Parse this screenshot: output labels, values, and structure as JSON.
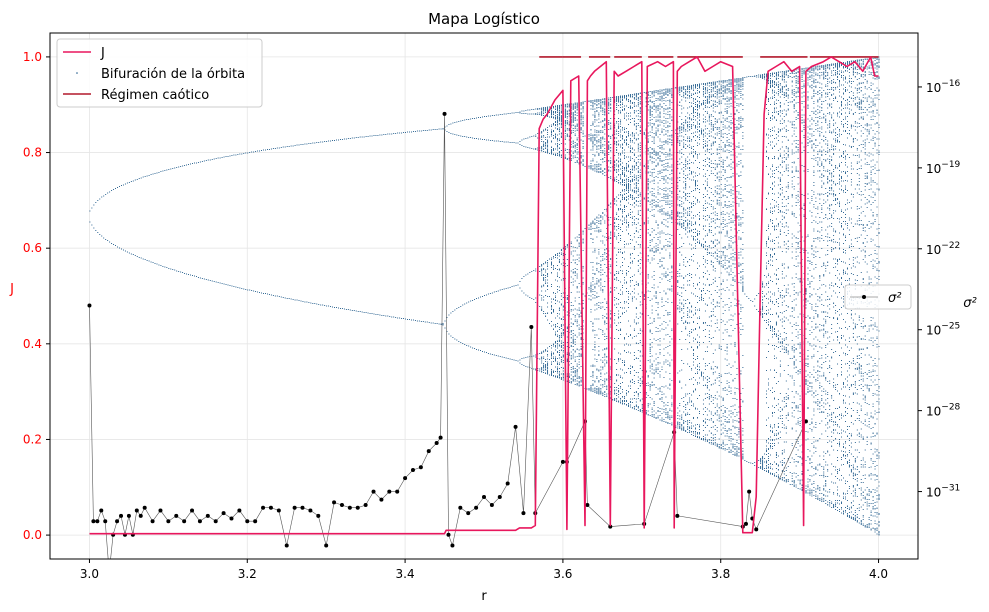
{
  "chart_data": {
    "type": "line",
    "title": "Mapa Logístico",
    "xlabel": "r",
    "ylabel_left": "J",
    "ylabel_right": "σ²",
    "xlim": [
      2.95,
      4.05
    ],
    "ylim_left": [
      -0.05,
      1.05
    ],
    "ylim_right_log10": [
      -33.5,
      -14
    ],
    "x_ticks": [
      3.0,
      3.2,
      3.4,
      3.6,
      3.8,
      4.0
    ],
    "x_tick_labels": [
      "3.0",
      "3.2",
      "3.4",
      "3.6",
      "3.8",
      "4.0"
    ],
    "y_left_ticks": [
      0.0,
      0.2,
      0.4,
      0.6,
      0.8,
      1.0
    ],
    "y_left_tick_labels": [
      "0.0",
      "0.2",
      "0.4",
      "0.6",
      "0.8",
      "1.0"
    ],
    "y_right_ticks_log10": [
      -16,
      -19,
      -22,
      -25,
      -28,
      -31
    ],
    "y_right_tick_labels": [
      "10",
      "10",
      "10",
      "10",
      "10",
      "10"
    ],
    "y_right_tick_exponents": [
      "−16",
      "−19",
      "−22",
      "−25",
      "−28",
      "−31"
    ],
    "grid": true,
    "legend_main": {
      "placement": "upper-left",
      "entries": [
        "J",
        "Bifuración de la órbita",
        "Régimen caótico"
      ]
    },
    "legend_secondary": {
      "placement": "center-right",
      "entries": [
        "σ²"
      ]
    },
    "colors": {
      "J": "#e8175d",
      "bifurcation": "#1f5a8a",
      "chaotic": "#b2182b",
      "sigma": "#000000",
      "left_axis_labels": "#ff0000"
    },
    "series": [
      {
        "name": "J",
        "axis": "left",
        "x": [
          3.0,
          3.45,
          3.452,
          3.54,
          3.545,
          3.56,
          3.565,
          3.57,
          3.575,
          3.58,
          3.59,
          3.6,
          3.605,
          3.61,
          3.62,
          3.628,
          3.631,
          3.635,
          3.64,
          3.655,
          3.66,
          3.665,
          3.67,
          3.68,
          3.69,
          3.7,
          3.703,
          3.707,
          3.72,
          3.73,
          3.74,
          3.741,
          3.745,
          3.75,
          3.76,
          3.77,
          3.78,
          3.79,
          3.8,
          3.815,
          3.828,
          3.832,
          3.84,
          3.845,
          3.85,
          3.855,
          3.86,
          3.87,
          3.88,
          3.89,
          3.9,
          3.905,
          3.908,
          3.915,
          3.93,
          3.94,
          3.95,
          3.96,
          3.97,
          3.98,
          3.99,
          3.995,
          4.0
        ],
        "values": [
          0.003,
          0.003,
          0.01,
          0.01,
          0.015,
          0.015,
          0.02,
          0.85,
          0.87,
          0.88,
          0.91,
          0.93,
          0.012,
          0.95,
          0.96,
          0.02,
          0.95,
          0.96,
          0.97,
          0.99,
          0.02,
          0.97,
          0.96,
          0.97,
          0.98,
          0.99,
          0.015,
          0.98,
          0.99,
          0.98,
          0.99,
          0.015,
          0.97,
          0.98,
          0.99,
          1.0,
          0.97,
          0.98,
          0.99,
          0.98,
          0.005,
          0.005,
          0.005,
          0.08,
          0.5,
          0.88,
          0.97,
          0.98,
          0.99,
          0.97,
          0.98,
          0.02,
          0.97,
          0.98,
          0.99,
          1.0,
          0.99,
          0.98,
          0.99,
          0.97,
          1.0,
          0.96,
          0.96
        ]
      },
      {
        "name": "Régimen caótico",
        "axis": "left",
        "level": 1.0,
        "segments": [
          [
            3.57,
            3.6
          ],
          [
            3.6,
            3.623
          ],
          [
            3.633,
            3.66
          ],
          [
            3.665,
            3.7
          ],
          [
            3.708,
            3.74
          ],
          [
            3.745,
            3.828
          ],
          [
            3.85,
            3.91
          ],
          [
            3.913,
            4.0
          ]
        ]
      },
      {
        "name": "σ²",
        "axis": "right_log10",
        "x": [
          3.0,
          3.005,
          3.01,
          3.015,
          3.02,
          3.025,
          3.03,
          3.035,
          3.04,
          3.045,
          3.05,
          3.055,
          3.06,
          3.065,
          3.07,
          3.08,
          3.09,
          3.1,
          3.11,
          3.12,
          3.13,
          3.14,
          3.15,
          3.16,
          3.17,
          3.18,
          3.19,
          3.2,
          3.21,
          3.22,
          3.23,
          3.24,
          3.25,
          3.26,
          3.27,
          3.28,
          3.29,
          3.3,
          3.31,
          3.32,
          3.33,
          3.34,
          3.35,
          3.36,
          3.37,
          3.38,
          3.39,
          3.4,
          3.41,
          3.42,
          3.43,
          3.44,
          3.445,
          3.45,
          3.455,
          3.46,
          3.47,
          3.48,
          3.49,
          3.5,
          3.51,
          3.52,
          3.53,
          3.54,
          3.55,
          3.56,
          3.565,
          3.6,
          3.605,
          3.628,
          3.631,
          3.66,
          3.703,
          3.741,
          3.745,
          3.828,
          3.832,
          3.836,
          3.84,
          3.845,
          3.908
        ],
        "values_log10": [
          -24.1,
          -32.1,
          -32.1,
          -31.7,
          -32.1,
          -34.0,
          -32.6,
          -32.1,
          -31.9,
          -32.6,
          -31.9,
          -32.6,
          -31.7,
          -31.9,
          -31.6,
          -32.1,
          -31.7,
          -32.1,
          -31.9,
          -32.1,
          -31.7,
          -32.1,
          -31.9,
          -32.1,
          -31.8,
          -32.0,
          -31.7,
          -32.1,
          -32.1,
          -31.6,
          -31.6,
          -31.7,
          -33.0,
          -31.6,
          -31.6,
          -31.7,
          -31.9,
          -33.0,
          -31.4,
          -31.5,
          -31.6,
          -31.6,
          -31.5,
          -31.0,
          -31.3,
          -31.0,
          -31.0,
          -30.5,
          -30.2,
          -30.1,
          -29.5,
          -29.2,
          -29.0,
          -17.0,
          -32.6,
          -33.0,
          -31.6,
          -31.8,
          -31.6,
          -31.2,
          -31.5,
          -31.2,
          -30.7,
          -28.6,
          -31.8,
          -24.9,
          -31.8,
          -29.9,
          -29.9,
          -28.4,
          -31.5,
          -32.3,
          -32.2,
          -28.8,
          -31.9,
          -32.3,
          -32.2,
          -31.0,
          -32.0,
          -32.4,
          -28.4
        ]
      }
    ]
  }
}
